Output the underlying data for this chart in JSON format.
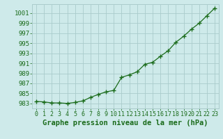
{
  "x": [
    0,
    1,
    2,
    3,
    4,
    5,
    6,
    7,
    8,
    9,
    10,
    11,
    12,
    13,
    14,
    15,
    16,
    17,
    18,
    19,
    20,
    21,
    22,
    23
  ],
  "y": [
    983.4,
    983.3,
    983.1,
    983.1,
    983.0,
    983.2,
    983.5,
    984.2,
    984.8,
    985.3,
    985.6,
    988.2,
    988.7,
    989.3,
    990.8,
    991.2,
    992.4,
    993.5,
    995.2,
    996.4,
    997.8,
    999.0,
    1000.5,
    1002.0
  ],
  "line_color": "#1a6b1a",
  "marker": "+",
  "marker_size": 4,
  "line_width": 0.9,
  "background_color": "#ceeaea",
  "grid_color": "#aacccc",
  "ylabel_ticks": [
    983,
    985,
    987,
    989,
    991,
    993,
    995,
    997,
    999,
    1001
  ],
  "xlabel": "Graphe pression niveau de la mer (hPa)",
  "xlabel_fontsize": 7.5,
  "tick_fontsize": 6.5,
  "ylim": [
    982.0,
    1002.8
  ],
  "xlim": [
    -0.5,
    23.5
  ]
}
